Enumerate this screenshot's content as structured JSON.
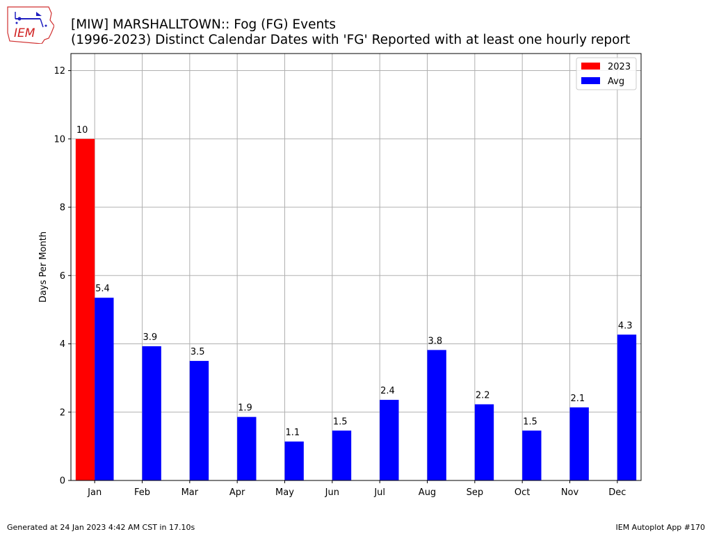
{
  "header": {
    "title_line1": "[MIW] MARSHALLTOWN:: Fog (FG) Events",
    "title_line2": "(1996-2023) Distinct Calendar Dates with 'FG' Reported with at least one hourly report",
    "logo_text": "IEM"
  },
  "footer": {
    "generated": "Generated at 24 Jan 2023 4:42 AM CST in 17.10s",
    "app": "IEM Autoplot App #170"
  },
  "colors": {
    "series_2023": "#ff0000",
    "series_avg": "#0000ff",
    "grid": "#b0b0b0"
  },
  "chart_data": {
    "type": "bar",
    "title": "[MIW] MARSHALLTOWN:: Fog (FG) Events",
    "subtitle": "(1996-2023) Distinct Calendar Dates with 'FG' Reported with at least one hourly report",
    "xlabel": "",
    "ylabel": "Days Per Month",
    "ylim": [
      0,
      12.5
    ],
    "yticks": [
      0,
      2,
      4,
      6,
      8,
      10,
      12
    ],
    "grid": true,
    "legend_position": "top-right",
    "categories": [
      "Jan",
      "Feb",
      "Mar",
      "Apr",
      "May",
      "Jun",
      "Jul",
      "Aug",
      "Sep",
      "Oct",
      "Nov",
      "Dec"
    ],
    "series": [
      {
        "name": "2023",
        "color": "#ff0000",
        "values": [
          10,
          null,
          null,
          null,
          null,
          null,
          null,
          null,
          null,
          null,
          null,
          null
        ],
        "labels": [
          "10",
          "",
          "",
          "",
          "",
          "",
          "",
          "",
          "",
          "",
          "",
          ""
        ]
      },
      {
        "name": "Avg",
        "color": "#0000ff",
        "values": [
          5.35,
          3.93,
          3.5,
          1.86,
          1.14,
          1.46,
          2.36,
          3.82,
          2.23,
          1.46,
          2.14,
          4.27
        ],
        "labels": [
          "5.4",
          "3.9",
          "3.5",
          "1.9",
          "1.1",
          "1.5",
          "2.4",
          "3.8",
          "2.2",
          "1.5",
          "2.1",
          "4.3"
        ]
      }
    ]
  }
}
